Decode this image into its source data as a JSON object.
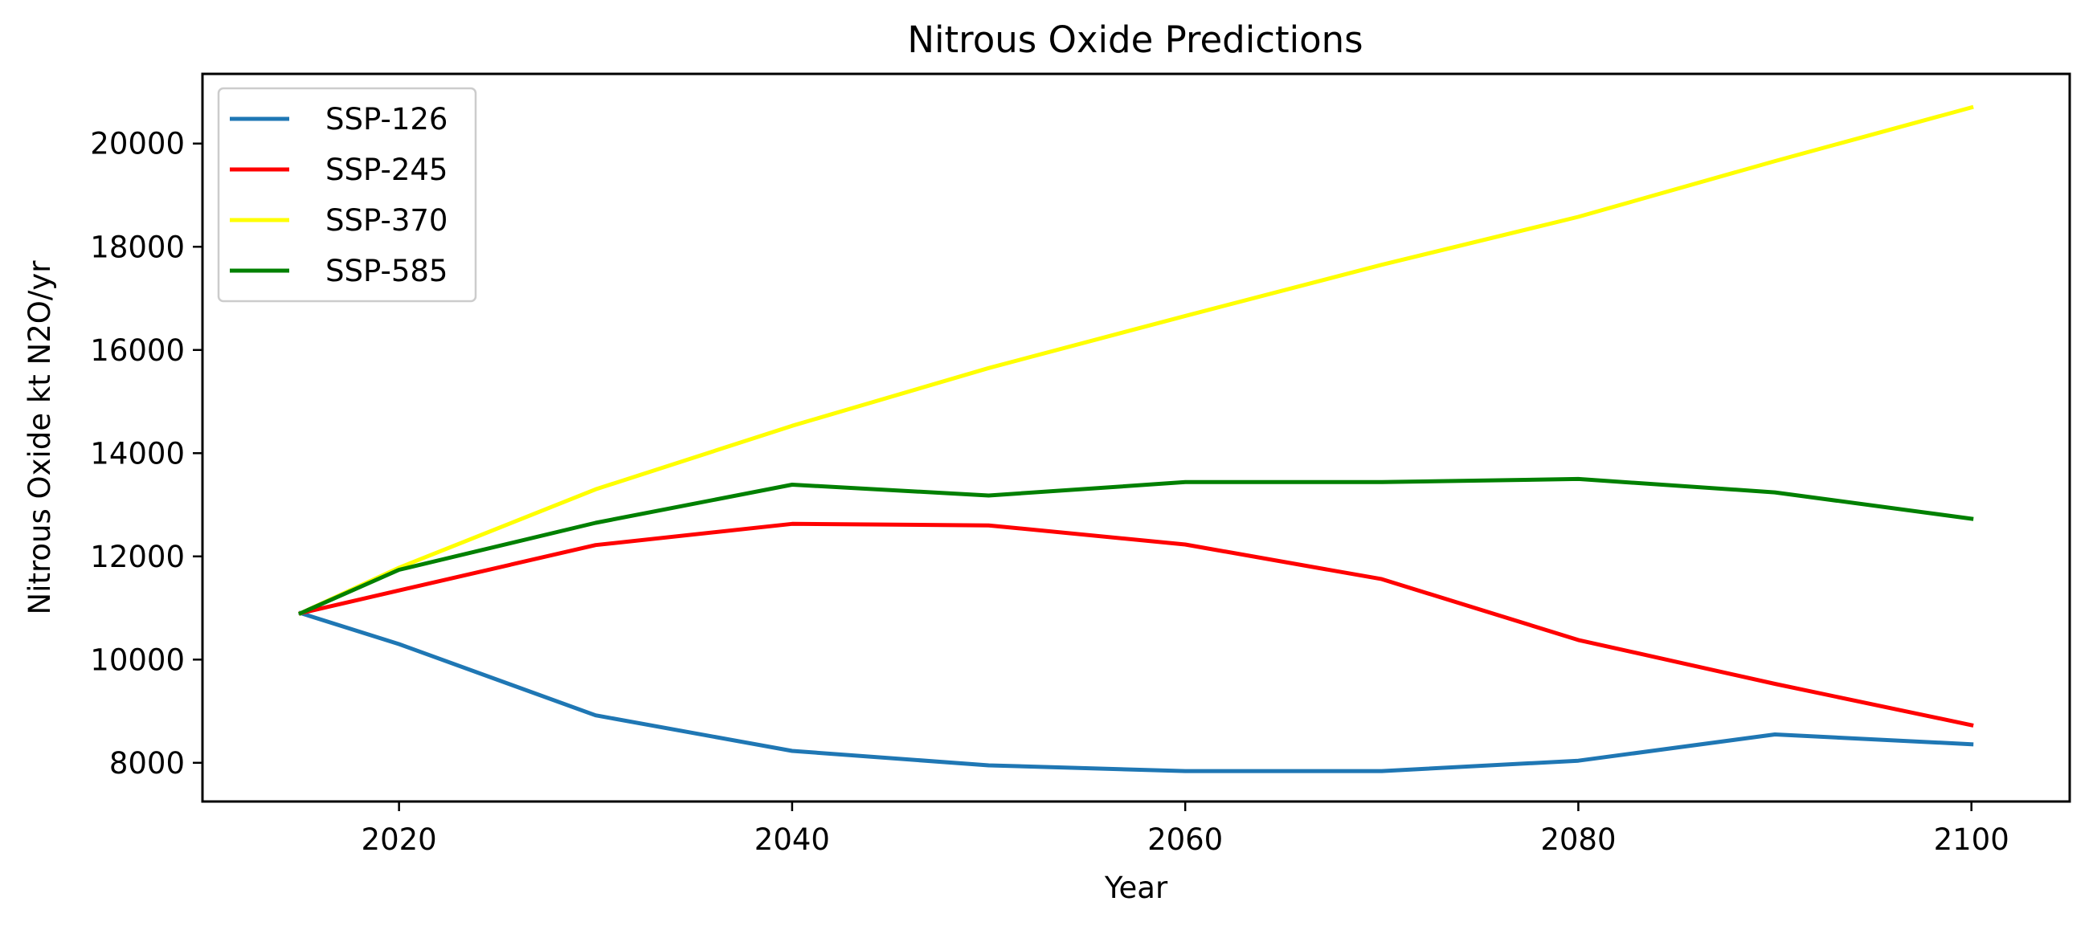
{
  "chart_data": {
    "type": "line",
    "title": "Nitrous Oxide Predictions",
    "xlabel": "Year",
    "ylabel": "Nitrous Oxide kt N2O/yr",
    "xlim": [
      2010,
      2105
    ],
    "ylim": [
      7250,
      21350
    ],
    "xticks": [
      2020,
      2040,
      2060,
      2080,
      2100
    ],
    "yticks": [
      8000,
      10000,
      12000,
      14000,
      16000,
      18000,
      20000
    ],
    "x": [
      2015,
      2020,
      2030,
      2040,
      2050,
      2060,
      2070,
      2080,
      2090,
      2100
    ],
    "grid": false,
    "legend_position": "top-left",
    "series": [
      {
        "name": "SSP-126",
        "color": "#1f77b4",
        "values": [
          10900,
          10300,
          8920,
          8230,
          7950,
          7840,
          7840,
          8040,
          8550,
          8360
        ]
      },
      {
        "name": "SSP-245",
        "color": "#ff0000",
        "values": [
          10900,
          11340,
          12220,
          12630,
          12600,
          12230,
          11560,
          10380,
          9530,
          8730
        ]
      },
      {
        "name": "SSP-370",
        "color": "#ffff00",
        "values": [
          10900,
          11780,
          13300,
          14530,
          15650,
          16660,
          17650,
          18580,
          19660,
          20700
        ]
      },
      {
        "name": "SSP-585",
        "color": "#008000",
        "values": [
          10900,
          11740,
          12650,
          13390,
          13180,
          13440,
          13440,
          13500,
          13240,
          12730
        ]
      }
    ]
  }
}
